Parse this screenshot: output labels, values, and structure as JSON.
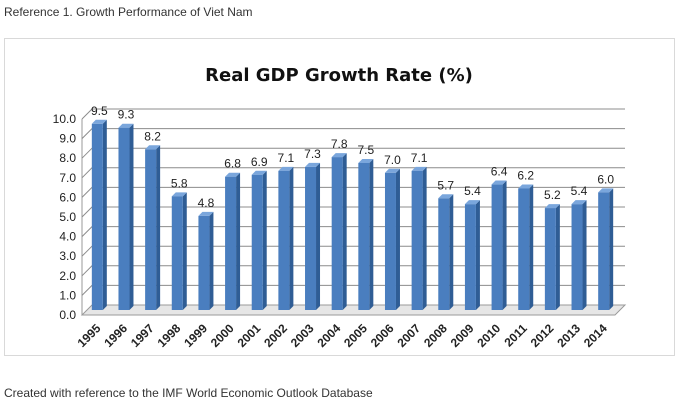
{
  "header_caption": "Reference 1. Growth Performance of Viet Nam",
  "footer_caption": "Created with reference to the IMF World Economic Outlook Database",
  "colors": {
    "bar": "#4a7ebf",
    "bar_dark": "#2f5d95",
    "bar_top": "#7aa6dc",
    "grid": "#8c8c8c"
  },
  "chart_data": {
    "type": "bar",
    "title": "Real GDP Growth Rate (%)",
    "xlabel": "",
    "ylabel": "",
    "ylim": [
      0,
      10
    ],
    "y_ticks": [
      "0.0",
      "1.0",
      "2.0",
      "3.0",
      "4.0",
      "5.0",
      "6.0",
      "7.0",
      "8.0",
      "9.0",
      "10.0"
    ],
    "grid": true,
    "categories": [
      "1995",
      "1996",
      "1997",
      "1998",
      "1999",
      "2000",
      "2001",
      "2002",
      "2003",
      "2004",
      "2005",
      "2006",
      "2007",
      "2008",
      "2009",
      "2010",
      "2011",
      "2012",
      "2013",
      "2014"
    ],
    "values": [
      9.5,
      9.3,
      8.2,
      5.8,
      4.8,
      6.8,
      6.9,
      7.1,
      7.3,
      7.8,
      7.5,
      7.0,
      7.1,
      5.7,
      5.4,
      6.4,
      6.2,
      5.2,
      5.4,
      6.0
    ],
    "value_labels": [
      "9.5",
      "9.3",
      "8.2",
      "5.8",
      "4.8",
      "6.8",
      "6.9",
      "7.1",
      "7.3",
      "7.8",
      "7.5",
      "7.0",
      "7.1",
      "5.7",
      "5.4",
      "6.4",
      "6.2",
      "5.2",
      "5.4",
      "6.0"
    ]
  }
}
